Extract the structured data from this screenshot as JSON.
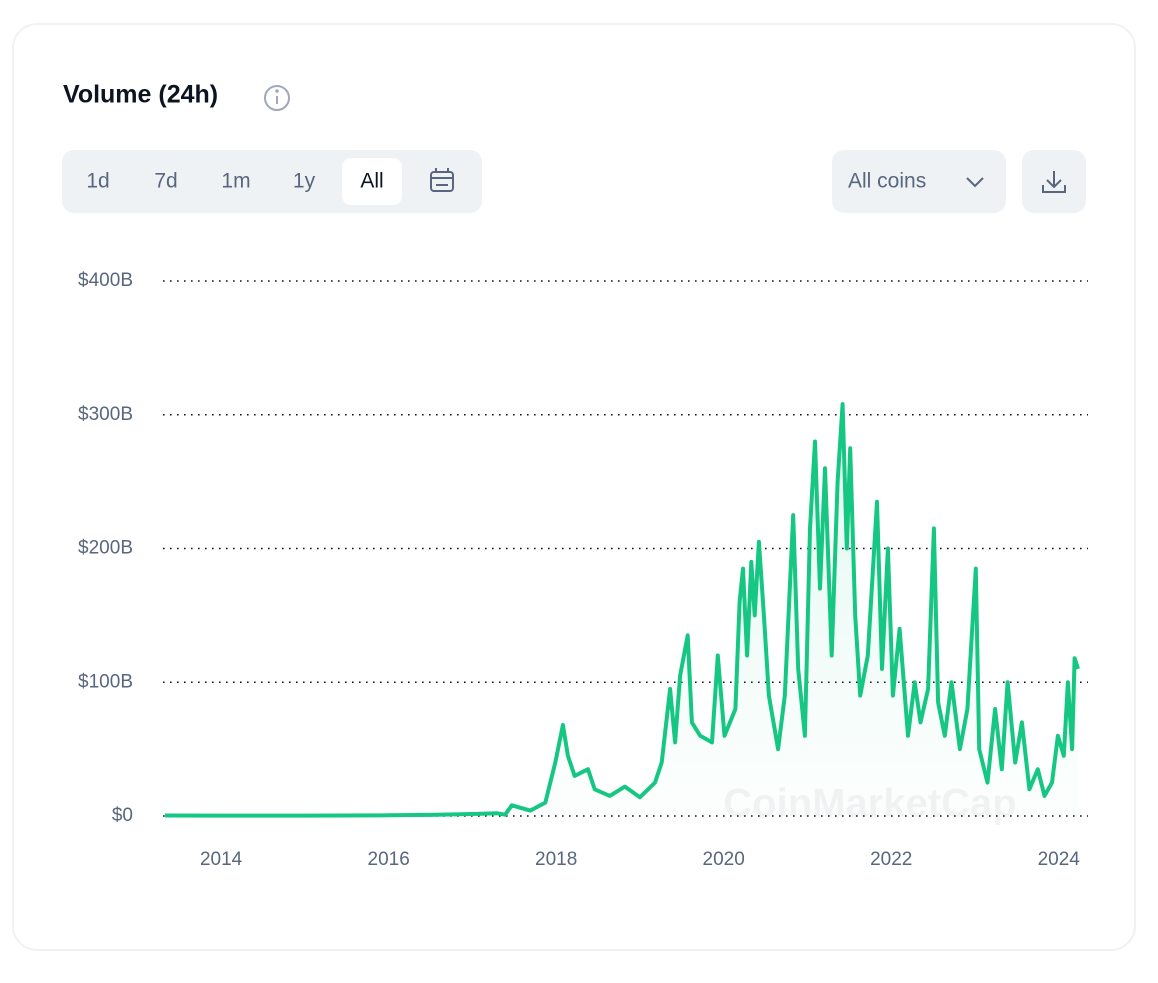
{
  "chart_data": {
    "type": "line",
    "title": "Volume (24h)",
    "color": "#16c784",
    "x": [
      2013.33,
      2014,
      2015,
      2016,
      2016.5,
      2017,
      2017.3,
      2017.39,
      2017.47,
      2017.69,
      2017.87,
      2017.99,
      2018.08,
      2018.14,
      2018.22,
      2018.38,
      2018.46,
      2018.64,
      2018.82,
      2019.0,
      2019.18,
      2019.26,
      2019.36,
      2019.42,
      2019.48,
      2019.57,
      2019.62,
      2019.72,
      2019.86,
      2019.93,
      2020.01,
      2020.14,
      2020.19,
      2020.23,
      2020.28,
      2020.33,
      2020.37,
      2020.42,
      2020.48,
      2020.54,
      2020.65,
      2020.73,
      2020.83,
      2020.89,
      2020.97,
      2021.03,
      2021.09,
      2021.15,
      2021.21,
      2021.29,
      2021.36,
      2021.42,
      2021.47,
      2021.51,
      2021.57,
      2021.63,
      2021.72,
      2021.83,
      2021.89,
      2021.96,
      2022.02,
      2022.1,
      2022.2,
      2022.28,
      2022.35,
      2022.44,
      2022.51,
      2022.56,
      2022.64,
      2022.72,
      2022.82,
      2022.91,
      2023.01,
      2023.05,
      2023.15,
      2023.24,
      2023.32,
      2023.39,
      2023.48,
      2023.56,
      2023.65,
      2023.75,
      2023.83,
      2023.92,
      2023.99,
      2024.06,
      2024.11,
      2024.16,
      2024.19,
      2024.23
    ],
    "values": [
      0.4,
      0.3,
      0.3,
      0.5,
      0.8,
      1.5,
      2,
      1,
      8,
      4,
      10,
      40,
      68,
      45,
      30,
      35,
      20,
      15,
      22,
      14,
      25,
      40,
      95,
      55,
      105,
      135,
      70,
      60,
      55,
      120,
      60,
      80,
      160,
      185,
      120,
      190,
      150,
      205,
      150,
      90,
      50,
      90,
      225,
      110,
      60,
      215,
      280,
      170,
      260,
      120,
      250,
      308,
      200,
      275,
      150,
      90,
      120,
      235,
      110,
      200,
      90,
      140,
      60,
      100,
      70,
      95,
      215,
      85,
      60,
      100,
      50,
      80,
      185,
      50,
      25,
      80,
      35,
      100,
      40,
      70,
      20,
      35,
      15,
      25,
      60,
      45,
      100,
      50,
      118,
      110
    ],
    "xlim": [
      2013.33,
      2024.23
    ],
    "xticks": [
      2014,
      2016,
      2018,
      2020,
      2022,
      2024
    ],
    "ylim": [
      0,
      400
    ],
    "yticks": [
      {
        "value": 0,
        "label": "$0"
      },
      {
        "value": 100,
        "label": "$100B"
      },
      {
        "value": 200,
        "label": "$200B"
      },
      {
        "value": 300,
        "label": "$300B"
      },
      {
        "value": 400,
        "label": "$400B"
      }
    ],
    "grid": true
  },
  "controls": {
    "ranges": [
      "1d",
      "7d",
      "1m",
      "1y",
      "All"
    ],
    "selected_range": 4,
    "coin_filter": "All coins",
    "watermark": "CoinMarketCap"
  }
}
